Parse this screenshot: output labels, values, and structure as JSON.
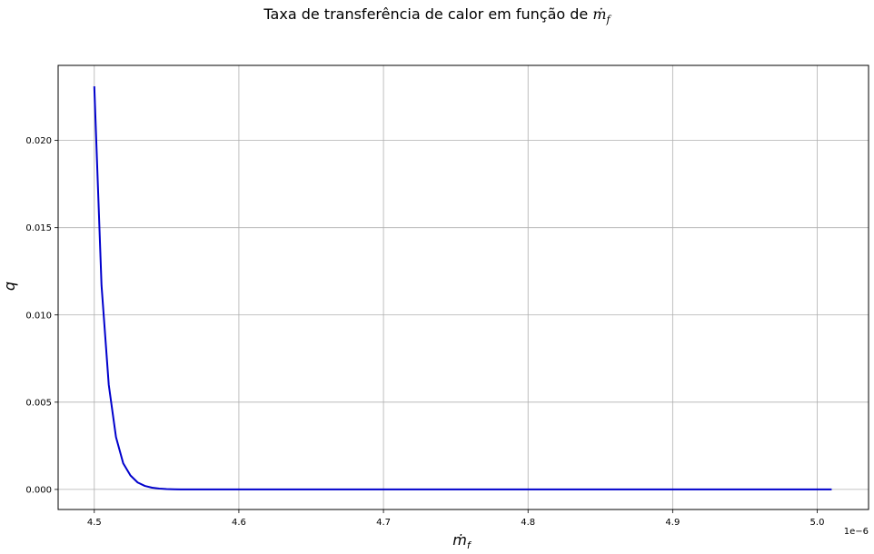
{
  "chart_data": {
    "type": "line",
    "title_text": "Taxa de transferência de calor em função de ",
    "title_math": "ṁ",
    "title_math_sub": "f",
    "xlabel": "ṁ",
    "xlabel_sub": "f",
    "ylabel": "q",
    "x_offset_label": "1e−6",
    "xlim": [
      4.475,
      5.0355
    ],
    "ylim": [
      -0.00115,
      0.0243
    ],
    "xticks": [
      4.5,
      4.6,
      4.7,
      4.8,
      4.9,
      5.0
    ],
    "xtick_labels": [
      "4.5",
      "4.6",
      "4.7",
      "4.8",
      "4.9",
      "5.0"
    ],
    "yticks": [
      0.0,
      0.005,
      0.01,
      0.015,
      0.02
    ],
    "ytick_labels": [
      "0.000",
      "0.005",
      "0.010",
      "0.015",
      "0.020"
    ],
    "grid": true,
    "color": "#0000cc",
    "series": [
      {
        "x": [
          4.5,
          4.505,
          4.51,
          4.515,
          4.52,
          4.525,
          4.53,
          4.535,
          4.54,
          4.545,
          4.55,
          4.555,
          4.56,
          4.57,
          4.58,
          4.6,
          4.7,
          4.8,
          4.9,
          5.0,
          5.01
        ],
        "y": [
          0.0231,
          0.0117,
          0.006,
          0.003,
          0.0015,
          0.0008,
          0.0004,
          0.0002,
          0.0001,
          5e-05,
          2e-05,
          1e-05,
          0.0,
          0.0,
          0.0,
          0.0,
          0.0,
          0.0,
          0.0,
          0.0,
          0.0
        ]
      }
    ]
  }
}
